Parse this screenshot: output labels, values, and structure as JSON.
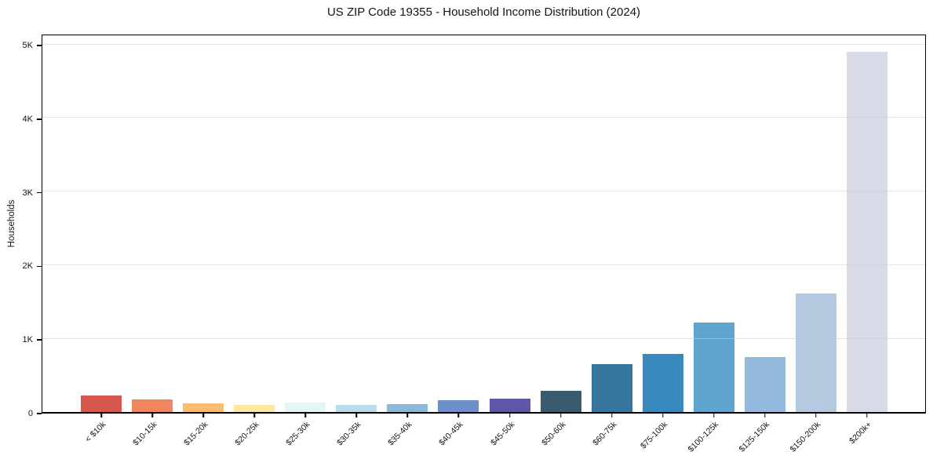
{
  "title": "US ZIP Code 19355 - Household Income Distribution (2024)",
  "chart_data": {
    "type": "bar",
    "title": "US ZIP Code 19355 - Household Income Distribution (2024)",
    "xlabel": "",
    "ylabel": "Households",
    "ylim": [
      0,
      5150
    ],
    "grid": "horizontal-light",
    "legend": "none",
    "yticks": [
      {
        "value": 0,
        "label": "0"
      },
      {
        "value": 1000,
        "label": "1K"
      },
      {
        "value": 2000,
        "label": "2K"
      },
      {
        "value": 3000,
        "label": "3K"
      },
      {
        "value": 4000,
        "label": "4K"
      },
      {
        "value": 5000,
        "label": "5K"
      }
    ],
    "categories": [
      "< $10k",
      "$10-15k",
      "$15-20k",
      "$20-25k",
      "$25-30k",
      "$30-35k",
      "$35-40k",
      "$40-45k",
      "$45-50k",
      "$50-60k",
      "$60-75k",
      "$75-100k",
      "$100-125k",
      "$125-150k",
      "$150-200k",
      "$200k+"
    ],
    "values": [
      225,
      170,
      120,
      95,
      125,
      95,
      110,
      160,
      185,
      290,
      650,
      790,
      1215,
      745,
      1610,
      4890
    ],
    "bar_colors": [
      "#d6574e",
      "#f0865f",
      "#fabb73",
      "#fde8a1",
      "#e4f4f7",
      "#b8dcea",
      "#8abada",
      "#6e90ca",
      "#5d57a8",
      "#395a70",
      "#36759e",
      "#3889bd",
      "#5fa5cd",
      "#93badc",
      "#b4c9e0",
      "#d8dae8"
    ]
  }
}
